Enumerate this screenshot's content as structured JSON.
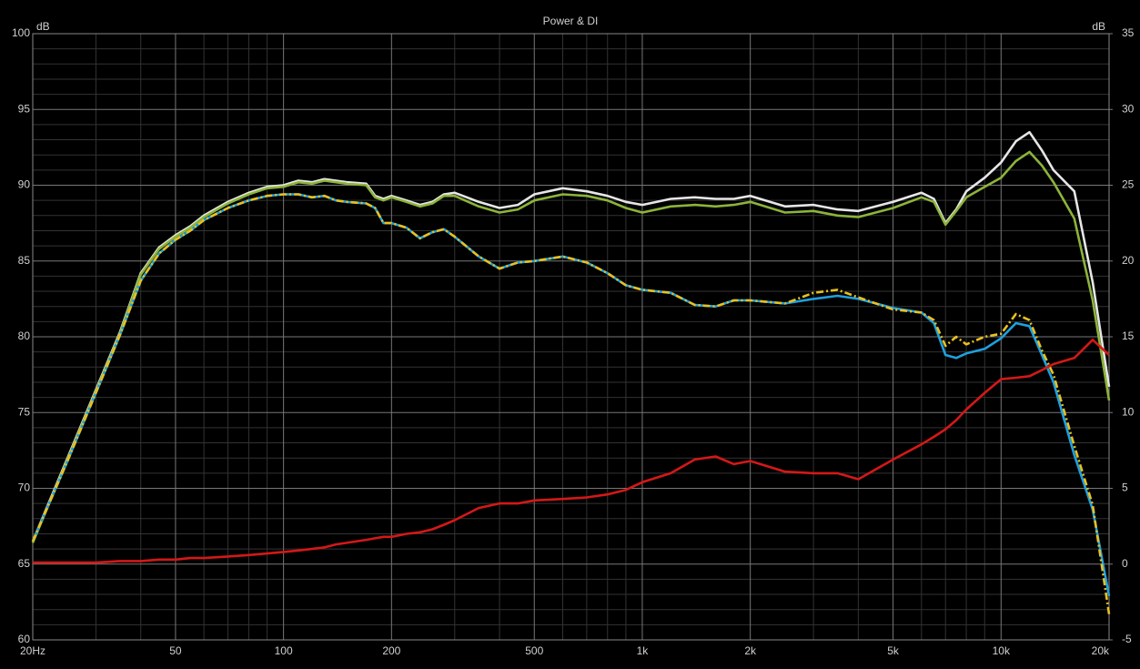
{
  "chart_data": {
    "type": "line",
    "title": "Power & DI",
    "ylabel": "dB",
    "y2label": "dB",
    "xscale": "log",
    "grid": true,
    "background": "#000000",
    "x": [
      20,
      25,
      30,
      35,
      40,
      45,
      50,
      55,
      60,
      70,
      80,
      90,
      100,
      110,
      120,
      130,
      140,
      150,
      170,
      180,
      190,
      200,
      220,
      240,
      260,
      280,
      300,
      350,
      400,
      450,
      500,
      600,
      700,
      800,
      900,
      1000,
      1200,
      1400,
      1600,
      1800,
      2000,
      2500,
      3000,
      3500,
      4000,
      5000,
      6000,
      6500,
      7000,
      7500,
      8000,
      9000,
      10000,
      11000,
      12000,
      13000,
      14000,
      16000,
      18000,
      20000
    ],
    "xlim": [
      20,
      20000
    ],
    "xticks": [
      {
        "value": 20,
        "label": "20Hz"
      },
      50,
      100,
      200,
      500,
      {
        "value": 1000,
        "label": "1k"
      },
      {
        "value": 2000,
        "label": "2k"
      },
      {
        "value": 5000,
        "label": "5k"
      },
      {
        "value": 10000,
        "label": "10k"
      },
      {
        "value": 20000,
        "label": "20k"
      }
    ],
    "xminorticks": [
      30,
      40,
      60,
      70,
      80,
      90,
      300,
      400,
      600,
      700,
      800,
      900,
      3000,
      4000,
      6000,
      7000,
      8000,
      9000
    ],
    "ylim": [
      60,
      100
    ],
    "yticks": [
      100,
      95,
      90,
      85,
      80,
      75,
      70,
      65,
      60
    ],
    "yminorticks": [
      61,
      62,
      63,
      64,
      66,
      67,
      68,
      69,
      71,
      72,
      73,
      74,
      76,
      77,
      78,
      79,
      81,
      82,
      83,
      84,
      86,
      87,
      88,
      89,
      91,
      92,
      93,
      94,
      96,
      97,
      98,
      99
    ],
    "y2lim": [
      -5,
      35
    ],
    "y2ticks": [
      35,
      30,
      25,
      20,
      15,
      10,
      5,
      0,
      -5
    ],
    "series": [
      {
        "color": "#e6e6e6",
        "values": [
          66.5,
          72,
          76.5,
          80.3,
          84.2,
          85.9,
          86.7,
          87.3,
          88,
          88.9,
          89.5,
          89.9,
          90,
          90.3,
          90.2,
          90.4,
          90.3,
          90.2,
          90.1,
          89.3,
          89.1,
          89.3,
          89,
          88.7,
          88.9,
          89.4,
          89.5,
          88.9,
          88.5,
          88.7,
          89.4,
          89.8,
          89.6,
          89.3,
          88.9,
          88.7,
          89.1,
          89.2,
          89.1,
          89.1,
          89.3,
          88.6,
          88.7,
          88.4,
          88.3,
          88.9,
          89.5,
          89.1,
          87.5,
          88.4,
          89.6,
          90.5,
          91.5,
          92.9,
          93.5,
          92.3,
          91,
          89.6,
          83.6,
          76.7
        ]
      },
      {
        "color": "#8cb43a",
        "values": [
          66.4,
          71.9,
          76.4,
          80.2,
          84.1,
          85.8,
          86.6,
          87.2,
          87.9,
          88.8,
          89.4,
          89.8,
          89.9,
          90.2,
          90.1,
          90.3,
          90.2,
          90.1,
          90,
          89.2,
          89,
          89.2,
          88.9,
          88.6,
          88.8,
          89.3,
          89.3,
          88.6,
          88.2,
          88.4,
          89,
          89.4,
          89.3,
          89,
          88.5,
          88.2,
          88.6,
          88.7,
          88.6,
          88.7,
          88.9,
          88.2,
          88.3,
          88,
          87.9,
          88.5,
          89.2,
          88.9,
          87.4,
          88.3,
          89.2,
          89.9,
          90.5,
          91.6,
          92.2,
          91.3,
          90.2,
          87.8,
          82.4,
          75.8
        ]
      },
      {
        "color": "#1ea0e0",
        "values": [
          66.5,
          71.8,
          76.3,
          80.1,
          83.7,
          85.5,
          86.4,
          87,
          87.7,
          88.5,
          89,
          89.3,
          89.4,
          89.4,
          89.2,
          89.3,
          89,
          88.9,
          88.8,
          88.5,
          87.5,
          87.5,
          87.2,
          86.5,
          86.9,
          87.1,
          86.6,
          85.3,
          84.5,
          84.9,
          85,
          85.3,
          84.9,
          84.2,
          83.4,
          83.1,
          82.9,
          82.1,
          82,
          82.4,
          82.4,
          82.2,
          82.5,
          82.7,
          82.5,
          81.9,
          81.6,
          80.9,
          78.8,
          78.6,
          78.9,
          79.2,
          79.9,
          80.9,
          80.7,
          78.8,
          77,
          72.2,
          68.6,
          62.9
        ]
      },
      {
        "color": "#e8c020",
        "linestyle": "dashdot",
        "values": [
          66.5,
          71.8,
          76.3,
          80.1,
          83.7,
          85.5,
          86.4,
          87,
          87.7,
          88.5,
          89,
          89.3,
          89.4,
          89.4,
          89.2,
          89.3,
          89,
          88.9,
          88.8,
          88.5,
          87.5,
          87.5,
          87.2,
          86.5,
          86.9,
          87.1,
          86.6,
          85.3,
          84.5,
          84.9,
          85,
          85.3,
          84.9,
          84.2,
          83.4,
          83.1,
          82.9,
          82.1,
          82,
          82.4,
          82.4,
          82.2,
          82.9,
          83.1,
          82.6,
          81.8,
          81.6,
          81.1,
          79.4,
          80,
          79.5,
          80,
          80.2,
          81.5,
          81.1,
          79.1,
          77.5,
          72.8,
          68.9,
          61.7
        ]
      },
      {
        "color": "#d41818",
        "axis": "y2",
        "values": [
          0.1,
          0.1,
          0.1,
          0.2,
          0.2,
          0.3,
          0.3,
          0.4,
          0.4,
          0.5,
          0.6,
          0.7,
          0.8,
          0.9,
          1,
          1.1,
          1.3,
          1.4,
          1.6,
          1.7,
          1.8,
          1.8,
          2,
          2.1,
          2.3,
          2.6,
          2.9,
          3.7,
          4,
          4,
          4.2,
          4.3,
          4.4,
          4.6,
          4.9,
          5.4,
          6,
          6.9,
          7.1,
          6.6,
          6.8,
          6.1,
          6,
          6,
          5.6,
          6.9,
          7.9,
          8.4,
          8.9,
          9.5,
          10.2,
          11.3,
          12.2,
          12.3,
          12.4,
          12.8,
          13.2,
          13.6,
          14.8,
          13.8
        ]
      }
    ]
  }
}
